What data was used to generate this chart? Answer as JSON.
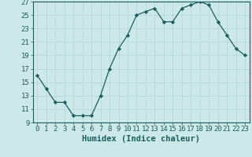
{
  "x": [
    0,
    1,
    2,
    3,
    4,
    5,
    6,
    7,
    8,
    9,
    10,
    11,
    12,
    13,
    14,
    15,
    16,
    17,
    18,
    19,
    20,
    21,
    22,
    23
  ],
  "y": [
    16,
    14,
    12,
    12,
    10,
    10,
    10,
    13,
    17,
    20,
    22,
    25,
    25.5,
    26,
    24,
    24,
    26,
    26.5,
    27,
    26.5,
    24,
    22,
    20,
    19
  ],
  "line_color": "#1a5f5f",
  "marker": "D",
  "marker_size": 2.2,
  "bg_color": "#cce8e8",
  "grid_color": "#b0d4d4",
  "xlabel": "Humidex (Indice chaleur)",
  "xlim": [
    -0.5,
    23.5
  ],
  "ylim": [
    9,
    27
  ],
  "yticks": [
    9,
    11,
    13,
    15,
    17,
    19,
    21,
    23,
    25,
    27
  ],
  "xticks": [
    0,
    1,
    2,
    3,
    4,
    5,
    6,
    7,
    8,
    9,
    10,
    11,
    12,
    13,
    14,
    15,
    16,
    17,
    18,
    19,
    20,
    21,
    22,
    23
  ],
  "tick_color": "#1a5f5f",
  "xlabel_fontsize": 7.5,
  "tick_fontsize": 6.5
}
